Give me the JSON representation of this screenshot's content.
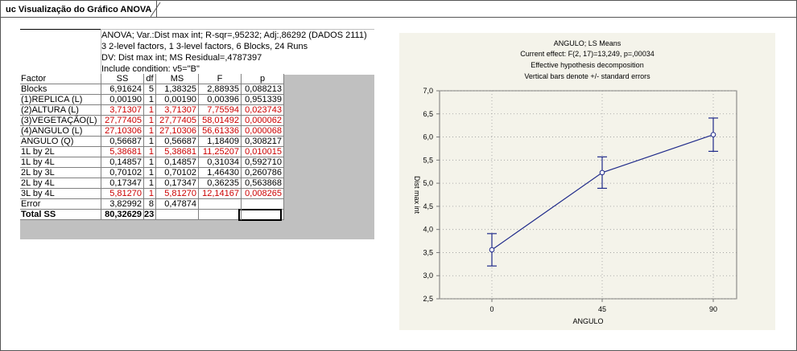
{
  "window": {
    "tab_title": "uc Visualização do Gráfico ANOVA"
  },
  "anova": {
    "header_lines": [
      "ANOVA; Var.:Dist max int; R-sqr=,95232; Adj:,86292 (DADOS 2111)",
      "3 2-level factors, 1 3-level factors, 6 Blocks, 24 Runs",
      "DV: Dist max int; MS Residual=,4787397",
      "Include condition: v5=\"B\""
    ],
    "columns": [
      "Factor",
      "SS",
      "df",
      "MS",
      "F",
      "p"
    ],
    "rows": [
      {
        "factor": "Blocks",
        "ss": "6,91624",
        "df": "5",
        "ms": "1,38325",
        "f": "2,88935",
        "p": "0,088213",
        "sig": false
      },
      {
        "factor": "(1)REPLICA (L)",
        "ss": "0,00190",
        "df": "1",
        "ms": "0,00190",
        "f": "0,00396",
        "p": "0,951339",
        "sig": false
      },
      {
        "factor": "(2)ALTURA  (L)",
        "ss": "3,71307",
        "df": "1",
        "ms": "3,71307",
        "f": "7,75594",
        "p": "0,023743",
        "sig": true
      },
      {
        "factor": "(3)VEGETAÇÃO(L)",
        "ss": "27,77405",
        "df": "1",
        "ms": "27,77405",
        "f": "58,01492",
        "p": "0,000062",
        "sig": true
      },
      {
        "factor": "(4)ANGULO  (L)",
        "ss": "27,10306",
        "df": "1",
        "ms": "27,10306",
        "f": "56,61336",
        "p": "0,000068",
        "sig": true
      },
      {
        "factor": "ANGULO  (Q)",
        "ss": "0,56687",
        "df": "1",
        "ms": "0,56687",
        "f": "1,18409",
        "p": "0,308217",
        "sig": false
      },
      {
        "factor": "1L by 2L",
        "ss": "5,38681",
        "df": "1",
        "ms": "5,38681",
        "f": "11,25207",
        "p": "0,010015",
        "sig": true
      },
      {
        "factor": "1L by 4L",
        "ss": "0,14857",
        "df": "1",
        "ms": "0,14857",
        "f": "0,31034",
        "p": "0,592710",
        "sig": false
      },
      {
        "factor": "2L by 3L",
        "ss": "0,70102",
        "df": "1",
        "ms": "0,70102",
        "f": "1,46430",
        "p": "0,260786",
        "sig": false
      },
      {
        "factor": "2L by 4L",
        "ss": "0,17347",
        "df": "1",
        "ms": "0,17347",
        "f": "0,36235",
        "p": "0,563868",
        "sig": false
      },
      {
        "factor": "3L by 4L",
        "ss": "5,81270",
        "df": "1",
        "ms": "5,81270",
        "f": "12,14167",
        "p": "0,008265",
        "sig": true
      },
      {
        "factor": "Error",
        "ss": "3,82992",
        "df": "8",
        "ms": "0,47874",
        "f": "",
        "p": "",
        "sig": false
      },
      {
        "factor": "Total SS",
        "ss": "80,32629",
        "df": "23",
        "ms": "",
        "f": "",
        "p": "",
        "sig": false
      }
    ],
    "colors": {
      "significant": "#cc0000",
      "normal": "#000000",
      "grid_bg": "#c0c0c0"
    }
  },
  "plot": {
    "title_lines": [
      "ANGULO; LS Means",
      "Current effect: F(2, 17)=13,249, p=,00034",
      "Effective hypothesis decomposition",
      "Vertical bars denote +/- standard errors"
    ],
    "ylabel": "Dist max int",
    "xlabel": "ANGULO",
    "line_color": "#1f2a8a"
  },
  "chart_data": {
    "type": "line",
    "title": "ANGULO; LS Means",
    "xlabel": "ANGULO",
    "ylabel": "Dist max int",
    "categories": [
      "0",
      "45",
      "90"
    ],
    "values": [
      3.56,
      5.23,
      6.05
    ],
    "error_low": [
      3.21,
      4.89,
      5.69
    ],
    "error_high": [
      3.91,
      5.57,
      6.41
    ],
    "ylim": [
      2.5,
      7.0
    ],
    "yticks": [
      "2,5",
      "3,0",
      "3,5",
      "4,0",
      "4,5",
      "5,0",
      "5,5",
      "6,0",
      "6,5",
      "7,0"
    ],
    "grid": true
  }
}
